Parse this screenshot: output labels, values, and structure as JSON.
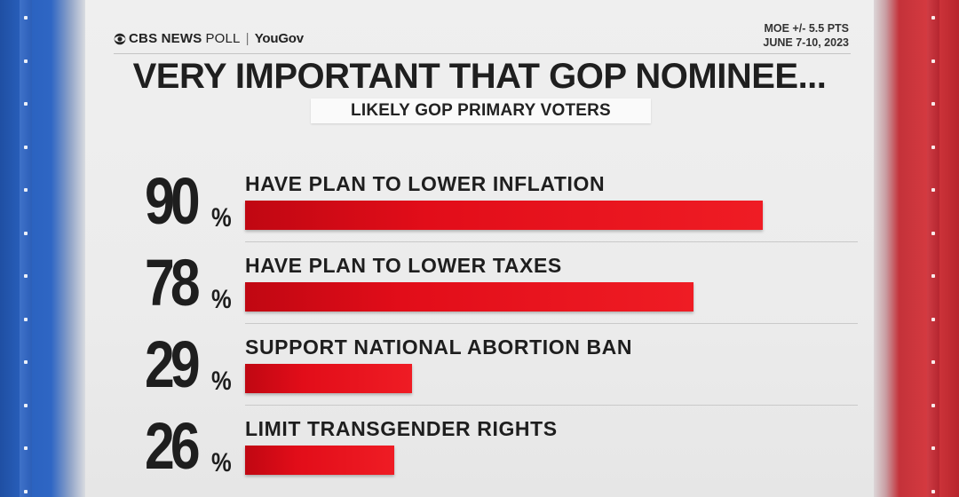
{
  "header": {
    "brand_cbs": "CBS NEWS",
    "brand_poll": "POLL",
    "brand_sep": "|",
    "brand_yougov": "YouGov",
    "moe_line1": "MOE +/- 5.5 PTS",
    "moe_line2": "JUNE 7-10, 2023"
  },
  "colors": {
    "bar": "#e20d19",
    "left_side": "#2a62bf",
    "right_side": "#d53a40",
    "text": "#1e1e1e"
  },
  "chart_data": {
    "type": "bar",
    "orientation": "horizontal",
    "title": "VERY IMPORTANT THAT GOP NOMINEE...",
    "subtitle": "LIKELY GOP PRIMARY VOTERS",
    "categories": [
      "HAVE PLAN TO LOWER INFLATION",
      "HAVE PLAN TO LOWER TAXES",
      "SUPPORT NATIONAL ABORTION BAN",
      "LIMIT TRANSGENDER RIGHTS"
    ],
    "values": [
      90,
      78,
      29,
      26
    ],
    "unit": "%",
    "xlim": [
      0,
      100
    ],
    "grid": false,
    "legend": "none"
  }
}
